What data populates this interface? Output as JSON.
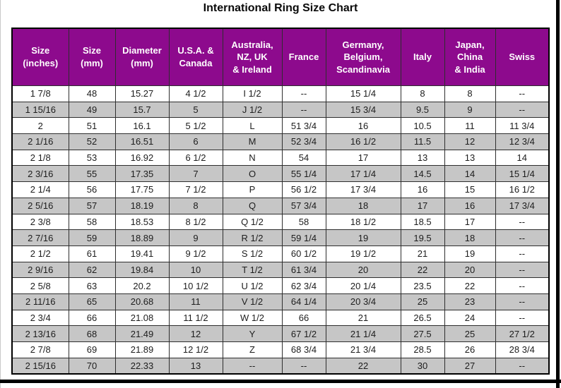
{
  "page": {
    "title": "International Ring Size Chart"
  },
  "colors": {
    "header_bg": "#8d0a8d",
    "header_text": "#ffffff",
    "row_bg": "#ffffff",
    "row_alt_bg": "#c6c6c6",
    "grid": "#2e2e2e",
    "outer_border": "#000000",
    "text": "#1d1d1d"
  },
  "chart_data": {
    "type": "table",
    "title": "International Ring Size Chart",
    "alternating_row_shading": true,
    "columns": [
      "Size\n(inches)",
      "Size\n(mm)",
      "Diameter\n(mm)",
      "U.S.A. &\nCanada",
      "Australia,\nNZ, UK\n& Ireland",
      "France",
      "Germany,\nBelgium,\nScandinavia",
      "Italy",
      "Japan,\nChina\n& India",
      "Swiss"
    ],
    "rows": [
      [
        "1  7/8",
        "48",
        "15.27",
        "4 1/2",
        "I 1/2",
        "--",
        "15 1/4",
        "8",
        "8",
        "--"
      ],
      [
        "1 15/16",
        "49",
        "15.7",
        "5",
        "J 1/2",
        "--",
        "15 3/4",
        "9.5",
        "9",
        "--"
      ],
      [
        "2",
        "51",
        "16.1",
        "5 1/2",
        "L",
        "51 3/4",
        "16",
        "10.5",
        "11",
        "11 3/4"
      ],
      [
        "2  1/16",
        "52",
        "16.51",
        "6",
        "M",
        "52 3/4",
        "16 1/2",
        "11.5",
        "12",
        "12 3/4"
      ],
      [
        "2  1/8",
        "53",
        "16.92",
        "6 1/2",
        "N",
        "54",
        "17",
        "13",
        "13",
        "14"
      ],
      [
        "2  3/16",
        "55",
        "17.35",
        "7",
        "O",
        "55 1/4",
        "17 1/4",
        "14.5",
        "14",
        "15 1/4"
      ],
      [
        "2  1/4",
        "56",
        "17.75",
        "7 1/2",
        "P",
        "56 1/2",
        "17 3/4",
        "16",
        "15",
        "16 1/2"
      ],
      [
        "2  5/16",
        "57",
        "18.19",
        "8",
        "Q",
        "57 3/4",
        "18",
        "17",
        "16",
        "17 3/4"
      ],
      [
        "2  3/8",
        "58",
        "18.53",
        "8 1/2",
        "Q 1/2",
        "58",
        "18 1/2",
        "18.5",
        "17",
        "--"
      ],
      [
        "2  7/16",
        "59",
        "18.89",
        "9",
        "R 1/2",
        "59 1/4",
        "19",
        "19.5",
        "18",
        "--"
      ],
      [
        "2  1/2",
        "61",
        "19.41",
        "9 1/2",
        "S 1/2",
        "60 1/2",
        "19 1/2",
        "21",
        "19",
        "--"
      ],
      [
        "2  9/16",
        "62",
        "19.84",
        "10",
        "T 1/2",
        "61 3/4",
        "20",
        "22",
        "20",
        "--"
      ],
      [
        "2  5/8",
        "63",
        "20.2",
        "10 1/2",
        "U 1/2",
        "62 3/4",
        "20 1/4",
        "23.5",
        "22",
        "--"
      ],
      [
        "2 11/16",
        "65",
        "20.68",
        "11",
        "V 1/2",
        "64 1/4",
        "20 3/4",
        "25",
        "23",
        "--"
      ],
      [
        "2  3/4",
        "66",
        "21.08",
        "11 1/2",
        "W 1/2",
        "66",
        "21",
        "26.5",
        "24",
        "--"
      ],
      [
        "2 13/16",
        "68",
        "21.49",
        "12",
        "Y",
        "67 1/2",
        "21 1/4",
        "27.5",
        "25",
        "27 1/2"
      ],
      [
        "2  7/8",
        "69",
        "21.89",
        "12 1/2",
        "Z",
        "68 3/4",
        "21 3/4",
        "28.5",
        "26",
        "28 3/4"
      ],
      [
        "2 15/16",
        "70",
        "22.33",
        "13",
        "--",
        "--",
        "22",
        "30",
        "27",
        "--"
      ]
    ]
  }
}
